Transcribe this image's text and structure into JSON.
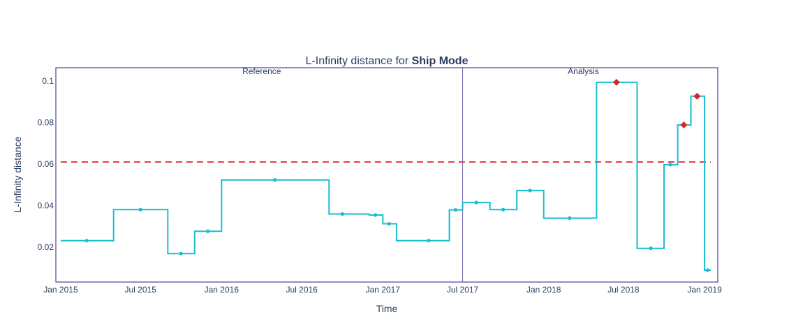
{
  "chart_data": {
    "type": "line",
    "title": "L-Infinity distance for ",
    "title_bold": "Ship Mode",
    "xlabel": "Time",
    "ylabel": "L-Infinity distance",
    "x_tick_labels": [
      "Jan 2015",
      "Jul 2015",
      "Jan 2016",
      "Jul 2016",
      "Jan 2017",
      "Jul 2017",
      "Jan 2018",
      "Jul 2018",
      "Jan 2019"
    ],
    "x_tick_dates": [
      "2015-01-01",
      "2015-07-01",
      "2016-01-01",
      "2016-07-01",
      "2017-01-01",
      "2017-07-01",
      "2018-01-01",
      "2018-07-01",
      "2019-01-01"
    ],
    "y_ticks": [
      0.02,
      0.04,
      0.06,
      0.08,
      0.1
    ],
    "y_tick_labels": [
      "0.02",
      "0.04",
      "0.06",
      "0.08",
      "0.1"
    ],
    "xlim": [
      "2014-12-21",
      "2019-01-31"
    ],
    "ylim": [
      0.0033,
      0.1063
    ],
    "line_shape": "step",
    "threshold": 0.061,
    "split_date": "2017-07-01",
    "regions": [
      {
        "label": "Reference",
        "label_date": "2016-04-01"
      },
      {
        "label": "Analysis",
        "label_date": "2018-04-01"
      }
    ],
    "series": [
      {
        "color": "#17becf",
        "points": [
          {
            "start": "2015-01-01",
            "end": "2015-05-01",
            "mid": "2015-03-01",
            "y": 0.0232,
            "alert": false
          },
          {
            "start": "2015-05-01",
            "end": "2015-09-01",
            "mid": "2015-07-01",
            "y": 0.0381,
            "alert": false
          },
          {
            "start": "2015-09-01",
            "end": "2015-11-01",
            "mid": "2015-10-01",
            "y": 0.017,
            "alert": false
          },
          {
            "start": "2015-11-01",
            "end": "2016-01-01",
            "mid": "2015-12-01",
            "y": 0.0277,
            "alert": false
          },
          {
            "start": "2016-01-01",
            "end": "2016-09-01",
            "mid": "2016-05-01",
            "y": 0.0524,
            "alert": false
          },
          {
            "start": "2016-09-01",
            "end": "2016-12-01",
            "mid": "2016-10-01",
            "y": 0.036,
            "alert": false
          },
          {
            "start": "2016-12-01",
            "end": "2017-01-01",
            "mid": "2016-12-15",
            "y": 0.0355,
            "alert": false
          },
          {
            "start": "2017-01-01",
            "end": "2017-02-01",
            "mid": "2017-01-15",
            "y": 0.0313,
            "alert": false
          },
          {
            "start": "2017-02-01",
            "end": "2017-06-01",
            "mid": "2017-04-15",
            "y": 0.0232,
            "alert": false
          },
          {
            "start": "2017-06-01",
            "end": "2017-07-01",
            "mid": "2017-06-15",
            "y": 0.038,
            "alert": false
          },
          {
            "start": "2017-07-01",
            "end": "2017-09-01",
            "mid": "2017-08-01",
            "y": 0.0415,
            "alert": false
          },
          {
            "start": "2017-09-01",
            "end": "2017-11-01",
            "mid": "2017-10-01",
            "y": 0.0381,
            "alert": false
          },
          {
            "start": "2017-11-01",
            "end": "2018-01-01",
            "mid": "2017-12-01",
            "y": 0.0473,
            "alert": false
          },
          {
            "start": "2018-01-01",
            "end": "2018-05-01",
            "mid": "2018-03-01",
            "y": 0.034,
            "alert": false
          },
          {
            "start": "2018-05-01",
            "end": "2018-08-01",
            "mid": "2018-06-15",
            "y": 0.0993,
            "alert": true
          },
          {
            "start": "2018-08-01",
            "end": "2018-10-01",
            "mid": "2018-09-01",
            "y": 0.0195,
            "alert": false
          },
          {
            "start": "2018-10-01",
            "end": "2018-11-01",
            "mid": "2018-10-15",
            "y": 0.0597,
            "alert": false
          },
          {
            "start": "2018-11-01",
            "end": "2018-12-01",
            "mid": "2018-11-15",
            "y": 0.0788,
            "alert": true
          },
          {
            "start": "2018-12-01",
            "end": "2019-01-01",
            "mid": "2018-12-15",
            "y": 0.0926,
            "alert": true
          },
          {
            "start": "2019-01-01",
            "end": "2019-01-15",
            "mid": "2019-01-08",
            "y": 0.009,
            "alert": false
          }
        ]
      }
    ],
    "colors": {
      "line": "#17becf",
      "alert_marker": "#d62728",
      "threshold": "#ef3b3b",
      "frame": "#2e1a8a",
      "split_line": "#6f5fa6",
      "text": "#2a3f5f"
    }
  }
}
